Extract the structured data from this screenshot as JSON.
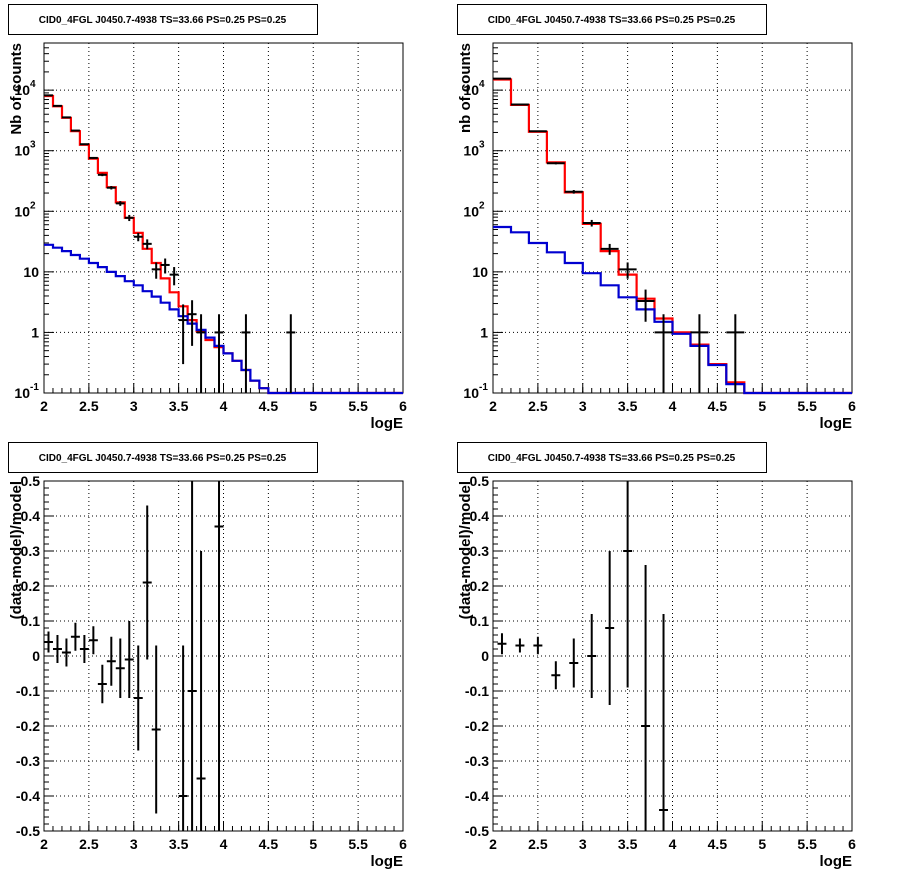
{
  "chart_data": [
    {
      "type": "step-histogram-with-errorbars",
      "title": "CID0_4FGL J0450.7-4938 TS=33.66 PS=0.25 PS=0.25",
      "xlabel": "logE",
      "ylabel": "Nb of counts",
      "xlim": [
        2,
        6
      ],
      "ylim": [
        0.1,
        60000
      ],
      "yscale": "log",
      "grid": true,
      "x_ticks": [
        "2",
        "2.5",
        "3",
        "3.5",
        "4",
        "4.5",
        "5",
        "5.5",
        "6"
      ],
      "y_ticks": [
        {
          "value": 0.1,
          "base": "10",
          "exp": "-1"
        },
        {
          "value": 1,
          "label": "1"
        },
        {
          "value": 10,
          "label": "10"
        },
        {
          "value": 100,
          "base": "10",
          "exp": "2"
        },
        {
          "value": 1000,
          "base": "10",
          "exp": "3"
        },
        {
          "value": 10000,
          "base": "10",
          "exp": "4"
        }
      ],
      "bin_edges": [
        2.0,
        2.1,
        2.2,
        2.3,
        2.4,
        2.5,
        2.6,
        2.7,
        2.8,
        2.9,
        3.0,
        3.1,
        3.2,
        3.3,
        3.4,
        3.5,
        3.6,
        3.7,
        3.8,
        3.9,
        4.0,
        4.1,
        4.2,
        4.3,
        4.4,
        4.5,
        4.6,
        4.7,
        4.8,
        4.9,
        5.0,
        5.1,
        5.2,
        5.3,
        5.4,
        5.5,
        5.6,
        5.7,
        5.8,
        5.9,
        6.0
      ],
      "series": [
        {
          "color": "#ff0000",
          "kind": "step",
          "values": [
            8000,
            5400,
            3500,
            2100,
            1250,
            740,
            430,
            250,
            140,
            78,
            44,
            24,
            14,
            7.8,
            4.6,
            2.7,
            1.6,
            1.05,
            0.75,
            0.57,
            0.45,
            0.34,
            0.24,
            0.16,
            0.12,
            0.1,
            0.09,
            0.09,
            0.09,
            0.09,
            0.09,
            0.09,
            0.09,
            0.09,
            0.09,
            0.09,
            0.09,
            0.09,
            0.09,
            0.09
          ]
        },
        {
          "color": "#0000d0",
          "kind": "step",
          "values": [
            28,
            25,
            22,
            19,
            16.5,
            14,
            12,
            10,
            8.5,
            7,
            6,
            4.8,
            3.9,
            3.1,
            2.4,
            1.85,
            1.4,
            1.1,
            0.82,
            0.6,
            0.45,
            0.34,
            0.24,
            0.16,
            0.12,
            0.1,
            0.09,
            0.09,
            0.09,
            0.09,
            0.09,
            0.09,
            0.09,
            0.09,
            0.09,
            0.09,
            0.09,
            0.09,
            0.09,
            0.09
          ]
        }
      ],
      "points": [
        {
          "x": 2.05,
          "y": 8200,
          "yerr": [
            90,
            90
          ]
        },
        {
          "x": 2.15,
          "y": 5500,
          "yerr": [
            75,
            75
          ]
        },
        {
          "x": 2.25,
          "y": 3550,
          "yerr": [
            60,
            60
          ]
        },
        {
          "x": 2.35,
          "y": 2150,
          "yerr": [
            46,
            46
          ]
        },
        {
          "x": 2.45,
          "y": 1280,
          "yerr": [
            36,
            36
          ]
        },
        {
          "x": 2.55,
          "y": 760,
          "yerr": [
            28,
            28
          ]
        },
        {
          "x": 2.65,
          "y": 400,
          "yerr": [
            20,
            20
          ]
        },
        {
          "x": 2.75,
          "y": 245,
          "yerr": [
            16,
            16
          ]
        },
        {
          "x": 2.85,
          "y": 135,
          "yerr": [
            12,
            12
          ]
        },
        {
          "x": 2.95,
          "y": 78,
          "yerr": [
            9,
            9
          ]
        },
        {
          "x": 3.05,
          "y": 38,
          "yerr": [
            6,
            6
          ]
        },
        {
          "x": 3.15,
          "y": 29,
          "yerr": [
            5.4,
            5.4
          ]
        },
        {
          "x": 3.25,
          "y": 11,
          "yerr": [
            3.3,
            3.3
          ]
        },
        {
          "x": 3.35,
          "y": 13,
          "yerr": [
            3.6,
            3.6
          ]
        },
        {
          "x": 3.45,
          "y": 9,
          "yerr": [
            3,
            3
          ]
        },
        {
          "x": 3.55,
          "y": 1.6,
          "yerr": [
            1.3,
            1.3
          ]
        },
        {
          "x": 3.65,
          "y": 2,
          "yerr": [
            1.4,
            1.4
          ]
        },
        {
          "x": 3.75,
          "y": 1,
          "yerr": [
            0.99,
            1
          ]
        },
        {
          "x": 3.95,
          "y": 1,
          "yerr": [
            0.99,
            1
          ]
        },
        {
          "x": 4.25,
          "y": 1,
          "yerr": [
            0.99,
            1
          ]
        },
        {
          "x": 4.75,
          "y": 1,
          "yerr": [
            0.99,
            1
          ]
        }
      ]
    },
    {
      "type": "step-histogram-with-errorbars",
      "title": "CID0_4FGL J0450.7-4938 TS=33.66 PS=0.25 PS=0.25",
      "xlabel": "logE",
      "ylabel": "nb of counts",
      "xlim": [
        2,
        6
      ],
      "ylim": [
        0.1,
        60000
      ],
      "yscale": "log",
      "grid": true,
      "x_ticks": [
        "2",
        "2.5",
        "3",
        "3.5",
        "4",
        "4.5",
        "5",
        "5.5",
        "6"
      ],
      "y_ticks": [
        {
          "value": 0.1,
          "base": "10",
          "exp": "-1"
        },
        {
          "value": 1,
          "label": "1"
        },
        {
          "value": 10,
          "label": "10"
        },
        {
          "value": 100,
          "base": "10",
          "exp": "2"
        },
        {
          "value": 1000,
          "base": "10",
          "exp": "3"
        },
        {
          "value": 10000,
          "base": "10",
          "exp": "4"
        }
      ],
      "bin_edges": [
        2.0,
        2.2,
        2.4,
        2.6,
        2.8,
        3.0,
        3.2,
        3.4,
        3.6,
        3.8,
        4.0,
        4.2,
        4.4,
        4.6,
        4.8,
        5.0,
        5.2,
        5.4,
        5.6,
        5.8,
        6.0
      ],
      "series": [
        {
          "color": "#ff0000",
          "kind": "step",
          "values": [
            15000,
            5700,
            2050,
            640,
            205,
            62,
            22,
            9,
            3.6,
            1.7,
            1.0,
            0.63,
            0.3,
            0.15,
            0.09,
            0.09,
            0.09,
            0.09,
            0.09,
            0.09
          ]
        },
        {
          "color": "#0000d0",
          "kind": "step",
          "values": [
            55,
            45,
            30,
            21,
            14,
            9.5,
            6,
            3.8,
            2.4,
            1.5,
            0.95,
            0.6,
            0.29,
            0.14,
            0.09,
            0.09,
            0.09,
            0.09,
            0.09,
            0.09
          ]
        }
      ],
      "points": [
        {
          "x": 2.1,
          "y": 15500,
          "yerr": [
            125,
            125
          ]
        },
        {
          "x": 2.3,
          "y": 5800,
          "yerr": [
            76,
            76
          ]
        },
        {
          "x": 2.5,
          "y": 2100,
          "yerr": [
            46,
            46
          ]
        },
        {
          "x": 2.7,
          "y": 620,
          "yerr": [
            25,
            25
          ]
        },
        {
          "x": 2.9,
          "y": 210,
          "yerr": [
            14.5,
            14.5
          ]
        },
        {
          "x": 3.1,
          "y": 64,
          "yerr": [
            8,
            8
          ]
        },
        {
          "x": 3.3,
          "y": 24,
          "yerr": [
            4.9,
            4.9
          ]
        },
        {
          "x": 3.5,
          "y": 11,
          "yerr": [
            3.3,
            3.3
          ]
        },
        {
          "x": 3.7,
          "y": 3.3,
          "yerr": [
            1.8,
            1.8
          ]
        },
        {
          "x": 3.9,
          "y": 1,
          "yerr": [
            0.99,
            1
          ]
        },
        {
          "x": 4.3,
          "y": 1,
          "yerr": [
            0.99,
            1
          ]
        },
        {
          "x": 4.7,
          "y": 1,
          "yerr": [
            0.99,
            1
          ]
        }
      ]
    },
    {
      "type": "scatter-errorbars",
      "title": "CID0_4FGL J0450.7-4938 TS=33.66 PS=0.25 PS=0.25",
      "xlabel": "logE",
      "ylabel": "(data-model)/model",
      "xlim": [
        2,
        6
      ],
      "ylim": [
        -0.5,
        0.5
      ],
      "grid": true,
      "x_ticks": [
        "2",
        "2.5",
        "3",
        "3.5",
        "4",
        "4.5",
        "5",
        "5.5",
        "6"
      ],
      "y_ticks": [
        "-0.5",
        "-0.4",
        "-0.3",
        "-0.2",
        "-0.1",
        "0",
        "0.1",
        "0.2",
        "0.3",
        "0.4",
        "0.5"
      ],
      "points": [
        {
          "x": 2.05,
          "y": 0.04,
          "yerr": [
            0.03,
            0.03
          ]
        },
        {
          "x": 2.15,
          "y": 0.02,
          "yerr": [
            0.04,
            0.04
          ]
        },
        {
          "x": 2.25,
          "y": 0.01,
          "yerr": [
            0.04,
            0.04
          ]
        },
        {
          "x": 2.35,
          "y": 0.055,
          "yerr": [
            0.04,
            0.04
          ]
        },
        {
          "x": 2.45,
          "y": 0.02,
          "yerr": [
            0.04,
            0.04
          ]
        },
        {
          "x": 2.55,
          "y": 0.045,
          "yerr": [
            0.04,
            0.04
          ]
        },
        {
          "x": 2.65,
          "y": -0.08,
          "yerr": [
            0.055,
            0.055
          ]
        },
        {
          "x": 2.75,
          "y": -0.015,
          "yerr": [
            0.07,
            0.07
          ]
        },
        {
          "x": 2.85,
          "y": -0.035,
          "yerr": [
            0.085,
            0.085
          ]
        },
        {
          "x": 2.95,
          "y": -0.01,
          "yerr": [
            0.11,
            0.11
          ]
        },
        {
          "x": 3.05,
          "y": -0.12,
          "yerr": [
            0.15,
            0.15
          ]
        },
        {
          "x": 3.15,
          "y": 0.21,
          "yerr": [
            0.22,
            0.22
          ]
        },
        {
          "x": 3.25,
          "y": -0.21,
          "yerr": [
            0.24,
            0.24
          ]
        },
        {
          "x": 3.55,
          "y": -0.4,
          "yerr": [
            0.5,
            0.43
          ]
        },
        {
          "x": 3.65,
          "y": -0.1,
          "yerr": [
            0.6,
            0.6
          ]
        },
        {
          "x": 3.75,
          "y": -0.35,
          "yerr": [
            0.6,
            0.65
          ]
        },
        {
          "x": 3.95,
          "y": 0.37,
          "yerr": [
            0.9,
            0.9
          ]
        }
      ]
    },
    {
      "type": "scatter-errorbars",
      "title": "CID0_4FGL J0450.7-4938 TS=33.66 PS=0.25 PS=0.25",
      "xlabel": "logE",
      "ylabel": "(data-model)/model",
      "xlim": [
        2,
        6
      ],
      "ylim": [
        -0.5,
        0.5
      ],
      "grid": true,
      "x_ticks": [
        "2",
        "2.5",
        "3",
        "3.5",
        "4",
        "4.5",
        "5",
        "5.5",
        "6"
      ],
      "y_ticks": [
        "-0.5",
        "-0.4",
        "-0.3",
        "-0.2",
        "-0.1",
        "0",
        "0.1",
        "0.2",
        "0.3",
        "0.4",
        "0.5"
      ],
      "points": [
        {
          "x": 2.1,
          "y": 0.035,
          "yerr": [
            0.03,
            0.03
          ]
        },
        {
          "x": 2.3,
          "y": 0.03,
          "yerr": [
            0.02,
            0.02
          ]
        },
        {
          "x": 2.5,
          "y": 0.03,
          "yerr": [
            0.025,
            0.025
          ]
        },
        {
          "x": 2.7,
          "y": -0.055,
          "yerr": [
            0.04,
            0.04
          ]
        },
        {
          "x": 2.9,
          "y": -0.02,
          "yerr": [
            0.07,
            0.07
          ]
        },
        {
          "x": 3.1,
          "y": 0.0,
          "yerr": [
            0.12,
            0.12
          ]
        },
        {
          "x": 3.3,
          "y": 0.08,
          "yerr": [
            0.22,
            0.22
          ]
        },
        {
          "x": 3.5,
          "y": 0.3,
          "yerr": [
            0.39,
            0.39
          ]
        },
        {
          "x": 3.7,
          "y": -0.2,
          "yerr": [
            0.46,
            0.46
          ]
        },
        {
          "x": 3.9,
          "y": -0.44,
          "yerr": [
            0.56,
            0.56
          ]
        }
      ]
    }
  ]
}
